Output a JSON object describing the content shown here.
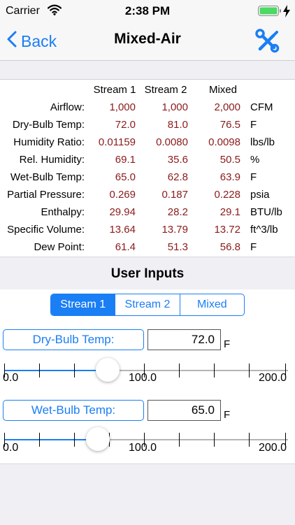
{
  "status_bar": {
    "carrier": "Carrier",
    "time": "2:38 PM"
  },
  "nav": {
    "back_label": "Back",
    "title": "Mixed-Air",
    "tools_icon": "tools-icon",
    "accent": "#1a7ef5"
  },
  "table": {
    "columns": [
      "Stream 1",
      "Stream 2",
      "Mixed"
    ],
    "rows": [
      {
        "label": "Airflow:",
        "values": [
          "1,000",
          "1,000",
          "2,000"
        ],
        "unit": "CFM"
      },
      {
        "label": "Dry-Bulb Temp:",
        "values": [
          "72.0",
          "81.0",
          "76.5"
        ],
        "unit": "F"
      },
      {
        "label": "Humidity Ratio:",
        "values": [
          "0.01159",
          "0.0080",
          "0.0098"
        ],
        "unit": "lbs/lb"
      },
      {
        "label": "Rel. Humidity:",
        "values": [
          "69.1",
          "35.6",
          "50.5"
        ],
        "unit": "%"
      },
      {
        "label": "Wet-Bulb Temp:",
        "values": [
          "65.0",
          "62.8",
          "63.9"
        ],
        "unit": "F"
      },
      {
        "label": "Partial Pressure:",
        "values": [
          "0.269",
          "0.187",
          "0.228"
        ],
        "unit": "psia"
      },
      {
        "label": "Enthalpy:",
        "values": [
          "29.94",
          "28.2",
          "29.1"
        ],
        "unit": "BTU/lb"
      },
      {
        "label": "Specific Volume:",
        "values": [
          "13.64",
          "13.79",
          "13.72"
        ],
        "unit": "ft^3/lb"
      },
      {
        "label": "Dew Point:",
        "values": [
          "61.4",
          "51.3",
          "56.8"
        ],
        "unit": "F"
      }
    ],
    "value_color": "#8b1a1a"
  },
  "user_inputs": {
    "title": "User Inputs",
    "segments": [
      "Stream 1",
      "Stream 2",
      "Mixed"
    ],
    "selected_segment": "Stream 1",
    "params": [
      {
        "button": "Dry-Bulb Temp:",
        "value": "72.0",
        "unit": "F",
        "slider_min": "0.0",
        "slider_mid": "100.0",
        "slider_max": "200.0",
        "slider_value": 72.0
      },
      {
        "button": "Wet-Bulb Temp:",
        "value": "65.0",
        "unit": "F",
        "slider_min": "0.0",
        "slider_mid": "100.0",
        "slider_max": "200.0",
        "slider_value": 65.0
      }
    ]
  }
}
